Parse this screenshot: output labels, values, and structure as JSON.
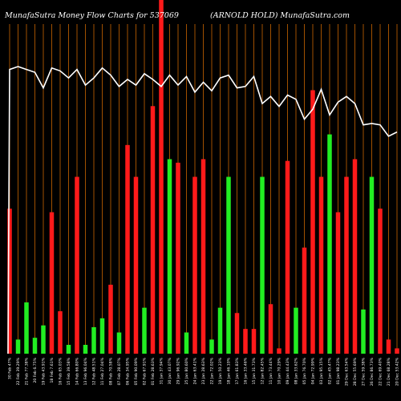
{
  "title": "MunafaSutra  Money Flow  Charts for 537069",
  "subtitle": "(ARNOLD HOLD) MunafaSutra.com",
  "colors": {
    "background": "#000000",
    "up": "#22ee22",
    "down": "#ff1a1a",
    "grid": "#b35a00",
    "line": "#ffffff"
  },
  "chart_data": {
    "type": "bar",
    "title": "MunafaSutra  Money Flow  Charts for 537069",
    "subtitle": "(ARNOLD HOLD) MunafaSutra.com",
    "grid": true,
    "categories": [
      "30 Feb 47%",
      "22 Feb 39.29%",
      "21 Feb 77.38%",
      "20 Feb 6.75%",
      "19 Feb 43.91%",
      "18 Feb 7.61%",
      "16 Feb 65.03%",
      "15 Feb 39.58%",
      "14 Feb 66.80%",
      "13 Feb 96.04%",
      "12 Feb 48.51%",
      "11 Feb 27.04%",
      "08 Feb 70.58%",
      "07 Feb 28.07%",
      "06 Feb 34.95%",
      "05 Feb 90.09%",
      "02 Feb 67.91%",
      "01 Feb 28.63%",
      "31 Jan 37.94%",
      "30 Jan 43.07%",
      "29 Jan 96.92%",
      "25 Jan 80.60%",
      "24 Jan 63.41%",
      "23 Jan 28.63%",
      "22 Jan 72.02%",
      "19 Jan 50.23%",
      "18 Jan 46.10%",
      "17 Jan 61.83%",
      "16 Jan 33.46%",
      "15 Jan 31.73%",
      "12 Jan 82.45%",
      "11 Jan 73.44%",
      "10 Jan 70.29%",
      "09 Jan 44.43%",
      "08 Jan 33.62%",
      "05 Jan 76.70%",
      "04 Jan 72.99%",
      "03 Jan 95.15%",
      "02 Jan 45.47%",
      "01 Jan 98.23%",
      "29 Dec 63.54%",
      "28 Dec 55.69%",
      "27 Dec 59.38%",
      "26 Dec 86.73%",
      "22 Dec 69.40%",
      "21 Dec 68.28%",
      "20 Dec 53.42%"
    ],
    "bar_colors": [
      "red",
      "green",
      "green",
      "green",
      "green",
      "red",
      "red",
      "green",
      "red",
      "green",
      "green",
      "green",
      "red",
      "green",
      "red",
      "red",
      "green",
      "red",
      "red",
      "green",
      "red",
      "green",
      "red",
      "red",
      "green",
      "green",
      "green",
      "red",
      "red",
      "red",
      "green",
      "red",
      "red",
      "red",
      "green",
      "red",
      "red",
      "red",
      "green",
      "red",
      "red",
      "red",
      "green",
      "green",
      "red",
      "red",
      "red"
    ],
    "values": [
      82,
      8,
      29,
      9,
      16,
      80,
      24,
      5,
      100,
      5,
      15,
      20,
      39,
      12,
      118,
      100,
      26,
      140,
      200,
      110,
      108,
      12,
      100,
      110,
      8,
      26,
      100,
      23,
      14,
      14,
      100,
      28,
      3,
      109,
      26,
      60,
      149,
      100,
      124,
      80,
      100,
      110,
      25,
      100,
      82,
      8,
      3
    ],
    "bar_max": 200,
    "line": [
      90,
      90.2,
      90,
      89.8,
      88.7,
      90.1,
      89.9,
      89.4,
      90,
      88.9,
      89.4,
      90.1,
      89.6,
      88.8,
      89.3,
      88.9,
      89.7,
      89.3,
      88.8,
      89.6,
      88.9,
      89.5,
      88.4,
      89.1,
      88.5,
      89.4,
      89.6,
      88.7,
      88.8,
      89.5,
      87.6,
      88.1,
      87.4,
      88.2,
      87.9,
      86.5,
      87.2,
      88.6,
      86.8,
      87.7,
      88.1,
      87.6,
      86.1,
      86.2,
      86.1,
      85.3,
      85.6
    ],
    "line_range": [
      70,
      91.5
    ]
  }
}
